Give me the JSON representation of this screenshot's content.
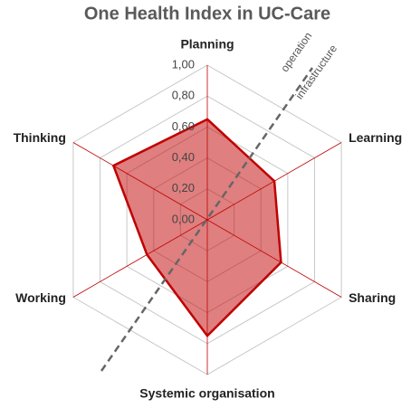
{
  "chart_data": {
    "type": "radar",
    "title": "One Health Index in UC-Care",
    "categories": [
      "Planning",
      "Learning",
      "Sharing",
      "Systemic organisation",
      "Working",
      "Thinking"
    ],
    "series": [
      {
        "name": "One Health Index",
        "color": "#c00000",
        "values": [
          0.65,
          0.5,
          0.55,
          0.75,
          0.45,
          0.7
        ]
      }
    ],
    "ylim": [
      0,
      1
    ],
    "yticks": [
      {
        "value": 0,
        "label": "0,00"
      },
      {
        "value": 0.2,
        "label": "0,20"
      },
      {
        "value": 0.4,
        "label": "0,40"
      },
      {
        "value": 0.6,
        "label": "0,60"
      },
      {
        "value": 0.8,
        "label": "0,80"
      },
      {
        "value": 1,
        "label": "1,00"
      }
    ],
    "grid": true,
    "annotations": [
      "operation",
      "infrastructure"
    ]
  }
}
